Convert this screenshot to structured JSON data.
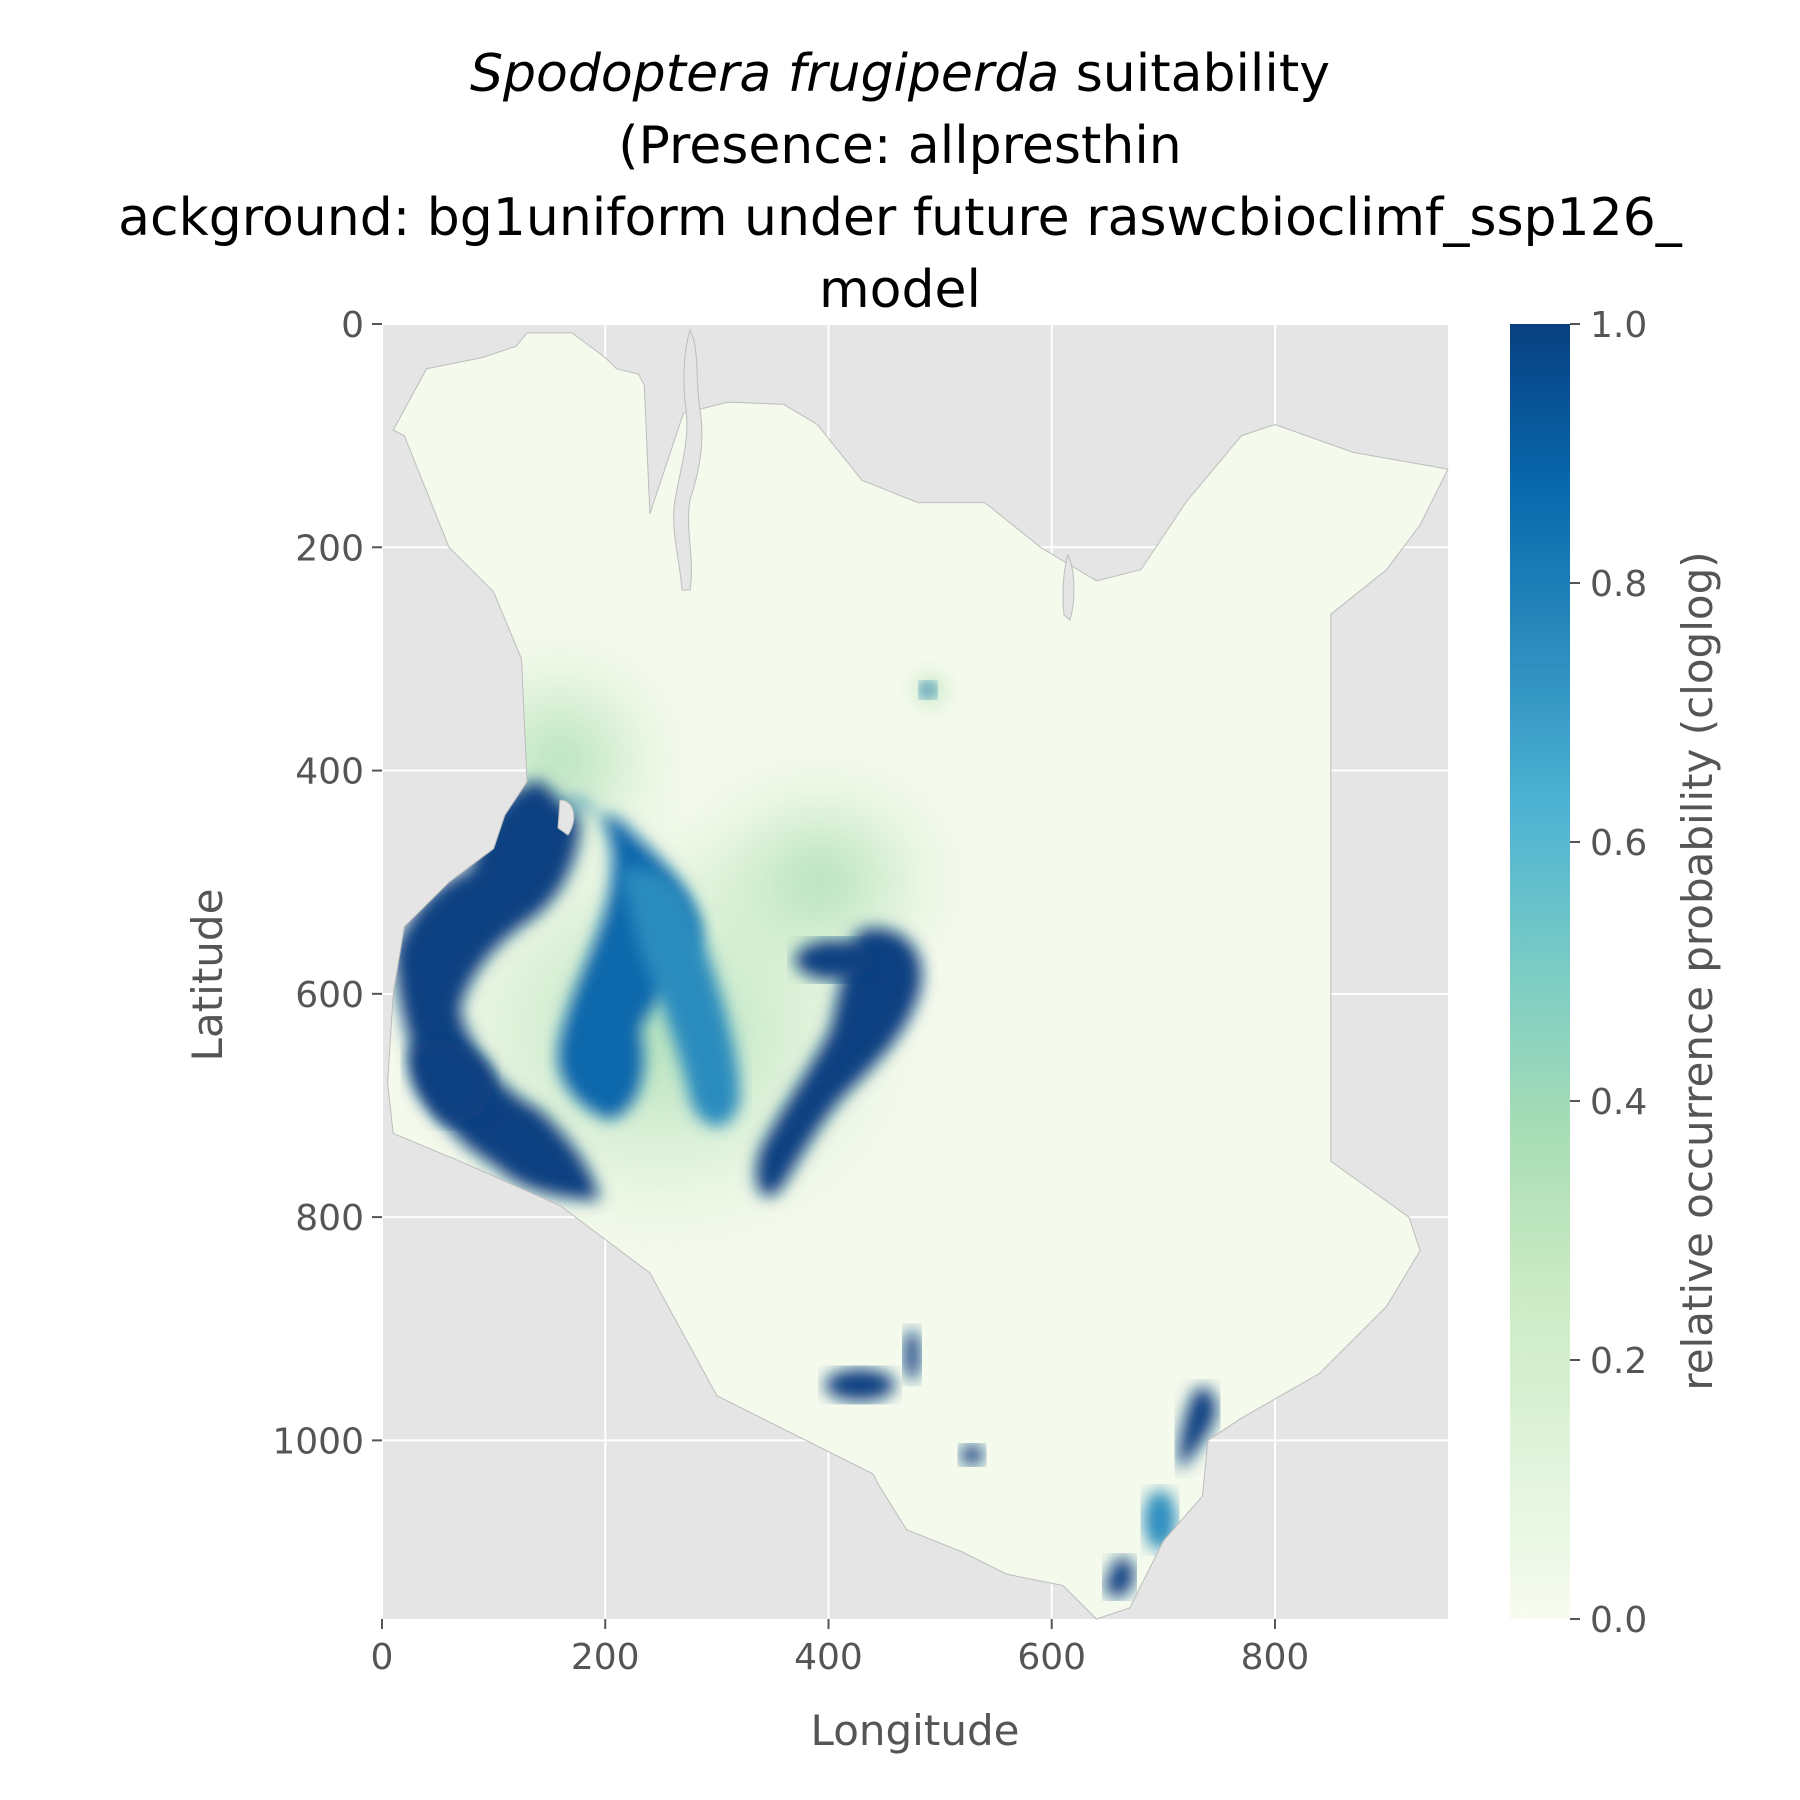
{
  "chart_data": {
    "type": "heatmap",
    "title_species": "Spodoptera frugiperda",
    "title_rest": " suitability",
    "title_line2": "(Presence: allpresthin",
    "title_line3": "ackground: bg1uniform under future raswcbioclimf_ssp126_",
    "title_line4": "model",
    "xlabel": "Longitude",
    "ylabel": "Latitude",
    "xlim": [
      0,
      955
    ],
    "ylim": [
      1160,
      0
    ],
    "x_ticks": [
      "0",
      "200",
      "400",
      "600",
      "800"
    ],
    "y_ticks": [
      "0",
      "200",
      "400",
      "600",
      "800",
      "1000"
    ],
    "grid": true,
    "colorbar": {
      "label": "relative occurrence probability (cloglog)",
      "ticks": [
        "0.0",
        "0.2",
        "0.4",
        "0.6",
        "0.8",
        "1.0"
      ],
      "range": [
        0.0,
        1.0
      ],
      "colormap": "GnBu",
      "stops": [
        "#f7fcf0",
        "#e0f3db",
        "#ccebc5",
        "#a8ddb5",
        "#7bccc4",
        "#4eb3d3",
        "#2b8cbe",
        "#0868ac",
        "#084081"
      ]
    },
    "panel_background": "#e5e5e5"
  }
}
